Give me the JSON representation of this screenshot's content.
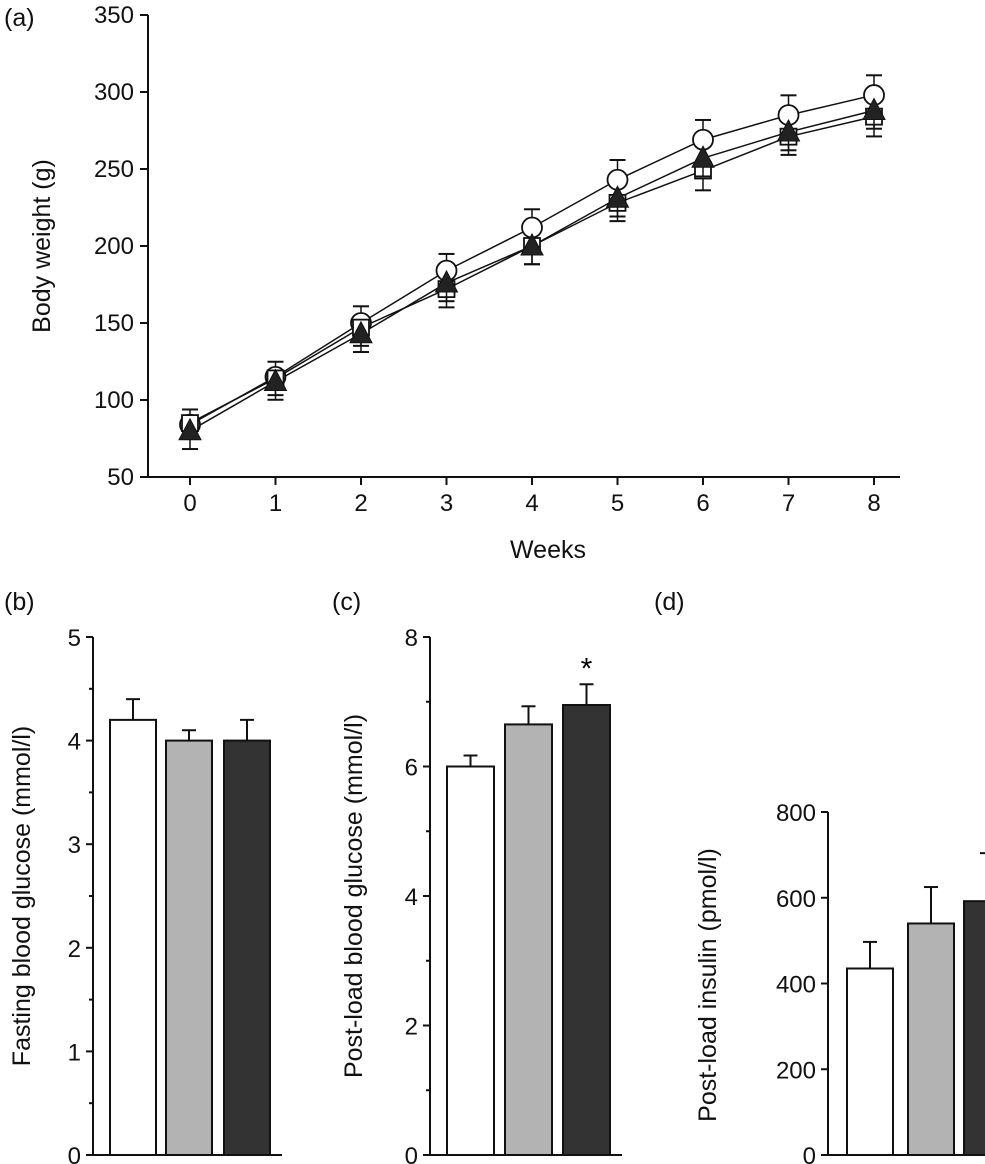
{
  "chart_data": [
    {
      "panel": "(a)",
      "type": "line",
      "xlabel": "Weeks",
      "ylabel": "Body weight (g)",
      "x": [
        0,
        1,
        2,
        3,
        4,
        5,
        6,
        7,
        8
      ],
      "xlim": [
        -0.5,
        8.5
      ],
      "ylim": [
        50,
        350
      ],
      "yticks": [
        50,
        100,
        150,
        200,
        250,
        300,
        350
      ],
      "grid": false,
      "series": [
        {
          "marker": "open-circle",
          "values": [
            84,
            115,
            150,
            184,
            212,
            243,
            269,
            285,
            298
          ],
          "err": [
            4,
            4,
            5,
            5,
            6,
            7,
            7,
            7,
            7
          ]
        },
        {
          "marker": "open-square",
          "values": [
            85,
            114,
            147,
            172,
            200,
            228,
            249,
            271,
            284
          ],
          "err": [
            4,
            5,
            6,
            6,
            6,
            6,
            7,
            6,
            7
          ]
        },
        {
          "marker": "filled-triangle",
          "values": [
            80,
            112,
            143,
            176,
            200,
            231,
            257,
            274,
            288
          ],
          "err": [
            6,
            6,
            6,
            6,
            6,
            6,
            6,
            6,
            6
          ]
        }
      ]
    },
    {
      "panel": "(b)",
      "type": "bar",
      "ylabel": "Fasting blood glucose (mmol/l)",
      "ylim": [
        0,
        5
      ],
      "yticks": [
        0,
        1,
        2,
        3,
        4,
        5
      ],
      "values": [
        4.2,
        4.0,
        4.0
      ],
      "err": [
        0.2,
        0.1,
        0.2
      ],
      "colors": [
        "#ffffff",
        "#b3b3b3",
        "#333333"
      ],
      "annotations": [
        "",
        "",
        ""
      ]
    },
    {
      "panel": "(c)",
      "type": "bar",
      "ylabel": "Post-load blood glucose (mmol/l)",
      "ylim": [
        0,
        8
      ],
      "yticks": [
        0,
        2,
        4,
        6,
        8
      ],
      "values": [
        6.0,
        6.65,
        6.95
      ],
      "err": [
        0.17,
        0.28,
        0.32
      ],
      "colors": [
        "#ffffff",
        "#b3b3b3",
        "#333333"
      ],
      "annotations": [
        "",
        "",
        "*"
      ]
    },
    {
      "panel": "(d)",
      "type": "bar",
      "ylabel": "Post-load insulin (pmol/l)",
      "ylim": [
        0,
        800
      ],
      "yticks": [
        0,
        200,
        400,
        600,
        800
      ],
      "values": [
        435,
        540,
        592
      ],
      "err": [
        62,
        85,
        112
      ],
      "colors": [
        "#ffffff",
        "#b3b3b3",
        "#333333"
      ],
      "annotations": [
        "",
        "",
        ""
      ]
    }
  ]
}
